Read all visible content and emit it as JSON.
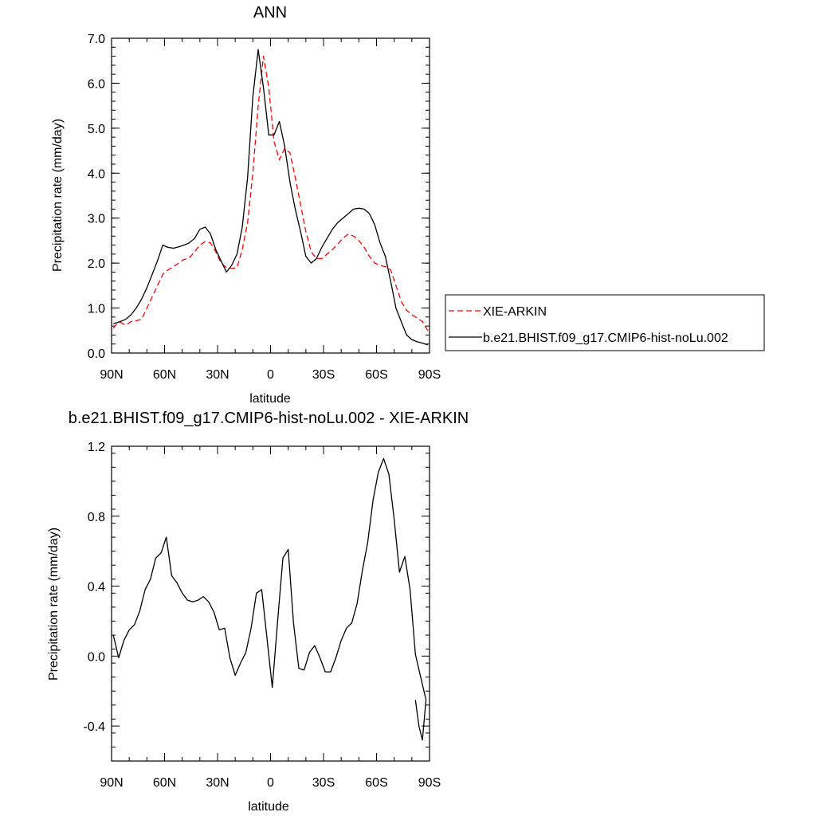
{
  "chart_data": [
    {
      "type": "line",
      "title": "ANN",
      "xlabel": "latitude",
      "ylabel": "Precipitation rate (mm/day)",
      "xlim": [
        90,
        -90
      ],
      "ylim": [
        0,
        7
      ],
      "x_ticks": [
        90,
        60,
        30,
        0,
        -30,
        -60,
        -90
      ],
      "x_tick_labels": [
        "90N",
        "60N",
        "30N",
        "0",
        "30S",
        "60S",
        "90S"
      ],
      "y_ticks": [
        0,
        1,
        2,
        3,
        4,
        5,
        6,
        7
      ],
      "y_tick_labels": [
        "0.0",
        "1.0",
        "2.0",
        "3.0",
        "4.0",
        "5.0",
        "6.0",
        "7.0"
      ],
      "grid": false,
      "legend_position": "right",
      "series": [
        {
          "name": "XIE-ARKIN",
          "color": "#ff0000",
          "style": "dashed",
          "x": [
            89,
            87,
            85,
            82,
            79,
            76,
            73,
            70,
            67,
            64,
            61,
            58,
            55,
            52,
            49,
            46,
            43,
            40,
            37,
            34,
            31,
            28,
            25,
            22,
            19,
            16,
            13,
            10,
            7,
            4,
            1,
            -2,
            -5,
            -8,
            -11,
            -14,
            -17,
            -20,
            -23,
            -26,
            -29,
            -32,
            -35,
            -38,
            -41,
            -44,
            -47,
            -50,
            -53,
            -56,
            -59,
            -62,
            -65,
            -68,
            -71,
            -74,
            -77,
            -80,
            -83,
            -86,
            -89
          ],
          "y": [
            0.55,
            0.65,
            0.68,
            0.62,
            0.7,
            0.72,
            0.75,
            1.0,
            1.25,
            1.5,
            1.75,
            1.85,
            1.92,
            2.0,
            2.08,
            2.12,
            2.25,
            2.4,
            2.48,
            2.45,
            2.25,
            2.0,
            1.9,
            1.88,
            1.9,
            2.3,
            2.9,
            4.0,
            5.5,
            6.6,
            5.9,
            4.7,
            4.3,
            4.55,
            4.45,
            3.9,
            3.3,
            2.7,
            2.25,
            2.1,
            2.1,
            2.2,
            2.3,
            2.42,
            2.55,
            2.65,
            2.6,
            2.5,
            2.35,
            2.15,
            2.0,
            1.95,
            1.92,
            1.85,
            1.5,
            1.15,
            0.95,
            0.85,
            0.78,
            0.7,
            0.5
          ]
        },
        {
          "name": "b.e21.BHIST.f09_g17.CMIP6-hist-noLu.002",
          "color": "#000000",
          "style": "solid",
          "x": [
            89,
            85,
            82,
            79,
            76,
            73,
            70,
            67,
            64,
            61,
            58,
            55,
            52,
            49,
            46,
            43,
            40,
            37,
            34,
            31,
            28,
            25,
            22,
            19,
            16,
            13,
            10,
            7,
            4,
            1,
            -2,
            -5,
            -8,
            -11,
            -14,
            -17,
            -20,
            -23,
            -26,
            -29,
            -32,
            -35,
            -38,
            -41,
            -44,
            -47,
            -50,
            -53,
            -56,
            -59,
            -62,
            -65,
            -68,
            -71,
            -74,
            -77,
            -80,
            -83,
            -86,
            -89
          ],
          "y": [
            0.65,
            0.7,
            0.75,
            0.85,
            1.0,
            1.2,
            1.45,
            1.75,
            2.05,
            2.4,
            2.35,
            2.33,
            2.36,
            2.4,
            2.45,
            2.55,
            2.75,
            2.8,
            2.65,
            2.3,
            2.05,
            1.8,
            1.95,
            2.2,
            2.8,
            3.9,
            5.7,
            6.75,
            5.9,
            4.85,
            4.85,
            5.15,
            4.6,
            3.8,
            3.2,
            2.7,
            2.15,
            2.0,
            2.1,
            2.35,
            2.55,
            2.75,
            2.9,
            3.0,
            3.1,
            3.2,
            3.22,
            3.2,
            3.1,
            2.85,
            2.45,
            2.15,
            1.6,
            1.0,
            0.7,
            0.4,
            0.3,
            0.25,
            0.22,
            0.18
          ]
        }
      ]
    },
    {
      "type": "line",
      "title": "b.e21.BHIST.f09_g17.CMIP6-hist-noLu.002 - XIE-ARKIN",
      "xlabel": "latitude",
      "ylabel": "Precipitation rate (mm/day)",
      "xlim": [
        90,
        -90
      ],
      "ylim": [
        -0.6,
        1.2
      ],
      "x_ticks": [
        90,
        60,
        30,
        0,
        -30,
        -60,
        -90
      ],
      "x_tick_labels": [
        "90N",
        "60N",
        "30N",
        "0",
        "30S",
        "60S",
        "90S"
      ],
      "y_ticks": [
        -0.4,
        0,
        0.4,
        0.8,
        1.2
      ],
      "y_tick_labels": [
        "-0.4",
        "0.0",
        "0.4",
        "0.8",
        "1.2"
      ],
      "grid": false,
      "series": [
        {
          "color": "#000000",
          "style": "solid",
          "x": [
            89,
            86,
            83,
            80,
            77,
            74,
            71,
            68,
            65,
            62,
            59,
            56,
            53,
            50,
            47,
            44,
            41,
            38,
            35,
            32,
            29,
            26,
            23,
            20,
            17,
            14,
            11,
            8,
            5,
            2,
            -1,
            -4,
            -7,
            -10,
            -13,
            -16,
            -19,
            -22,
            -25,
            -28,
            -31,
            -34,
            -37,
            -40,
            -43,
            -46,
            -49,
            -52,
            -55,
            -58,
            -61,
            -64,
            -67,
            -70,
            -73,
            -76,
            -79,
            -82,
            -85,
            -88
          ],
          "y": [
            0.12,
            -0.01,
            0.09,
            0.15,
            0.18,
            0.26,
            0.38,
            0.44,
            0.56,
            0.59,
            0.68,
            0.46,
            0.42,
            0.36,
            0.32,
            0.31,
            0.32,
            0.34,
            0.31,
            0.25,
            0.15,
            0.16,
            -0.01,
            -0.11,
            -0.04,
            0.02,
            0.16,
            0.36,
            0.38,
            0.1,
            -0.18,
            0.2,
            0.56,
            0.61,
            0.19,
            -0.07,
            -0.08,
            0.02,
            0.06,
            -0.01,
            -0.09,
            -0.09,
            -0.01,
            0.09,
            0.16,
            0.19,
            0.3,
            0.49,
            0.65,
            0.89,
            1.05,
            1.13,
            1.04,
            0.78,
            0.48,
            0.57,
            0.38,
            0.01,
            -0.12,
            -0.25
          ]
        }
      ],
      "tail": {
        "x": [
          -88,
          -86,
          -84,
          -82
        ],
        "y": [
          -0.25,
          -0.48,
          -0.4,
          -0.25
        ]
      }
    }
  ]
}
